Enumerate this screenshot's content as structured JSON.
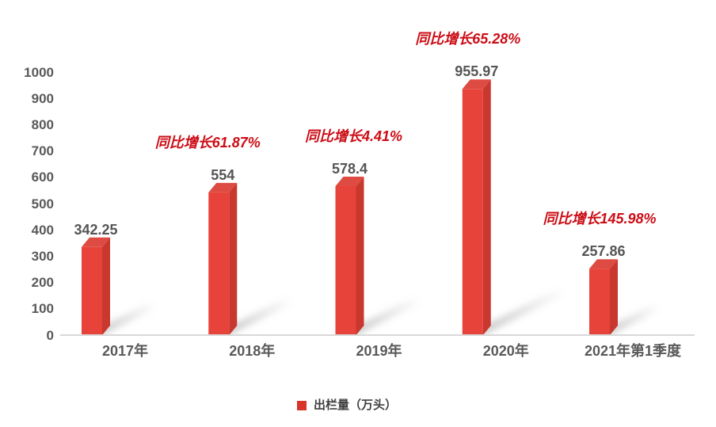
{
  "chart_data": {
    "type": "bar",
    "categories": [
      "2017年",
      "2018年",
      "2019年",
      "2020年",
      "2021年第1季度"
    ],
    "series": [
      {
        "name": "出栏量（万头）",
        "values": [
          342.25,
          554,
          578.4,
          955.97,
          257.86
        ]
      }
    ],
    "value_labels": [
      "342.25",
      "554",
      "578.4",
      "955.97",
      "257.86"
    ],
    "annotations": [
      "",
      "同比增长61.87%",
      "同比增长4.41%",
      "同比增长65.28%",
      "同比增长145.98%"
    ],
    "yoy_growth_percent": [
      null,
      61.87,
      4.41,
      65.28,
      145.98
    ],
    "y_ticks": [
      "0",
      "100",
      "200",
      "300",
      "400",
      "500",
      "600",
      "700",
      "800",
      "900",
      "1000"
    ],
    "ylim": [
      0,
      1000
    ],
    "grid": false,
    "bar_style": "3d",
    "legend_position": "bottom",
    "legend_label": "出栏量（万头）"
  },
  "colors": {
    "bar_front": "#e8433a",
    "bar_side": "#c9382e",
    "bar_top": "#dd4b42",
    "annotation_red": "#cc0d16",
    "axis_text": "#595959",
    "value_text": "#555555",
    "legend_text": "#3f3f3f",
    "legend_swatch": "#d8342a",
    "axis_line": "#d8d8d8",
    "shadow": "#7d7d7d",
    "background": "#ffffff"
  }
}
